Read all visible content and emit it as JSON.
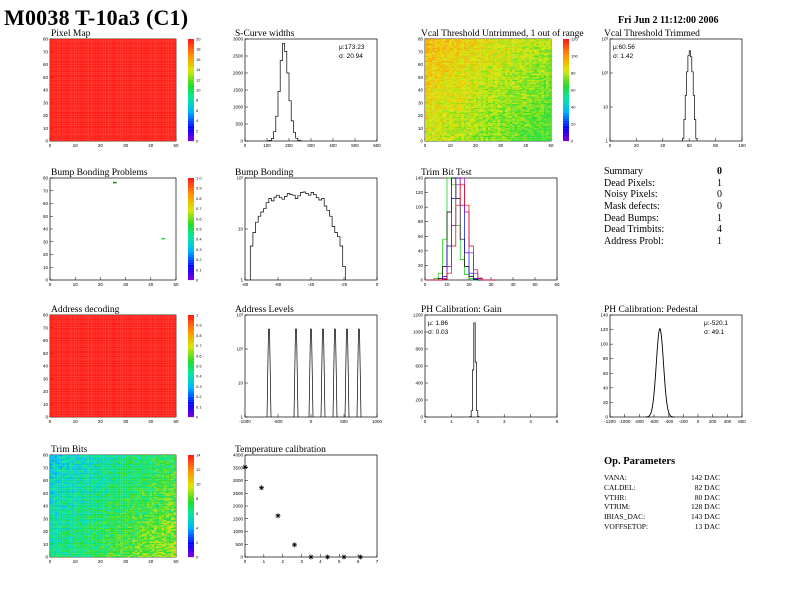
{
  "header": {
    "title": "M0038 T-10a3 (C1)",
    "date": "Fri Jun  2 11:12:00 2006"
  },
  "panels": {
    "pixel_map": {
      "title": "Pixel Map"
    },
    "scurve": {
      "title": "S-Curve widths",
      "stats": [
        "μ:173.23",
        "σ: 20.94"
      ]
    },
    "vcal_untrimmed": {
      "title": "Vcal Threshold Untrimmed, 1 out of range"
    },
    "vcal_trimmed": {
      "title": "Vcal Threshold Trimmed",
      "stats": [
        "μ:60.56",
        "σ: 1.42"
      ]
    },
    "bump_problems": {
      "title": "Bump Bonding Problems"
    },
    "bump_bonding": {
      "title": "Bump Bonding"
    },
    "trim_bit_test": {
      "title": "Trim Bit Test"
    },
    "address_decoding": {
      "title": "Address decoding"
    },
    "address_levels": {
      "title": "Address Levels"
    },
    "ph_gain": {
      "title": "PH Calibration: Gain",
      "stats": [
        "μ: 1.86",
        "σ: 0.03"
      ]
    },
    "ph_pedestal": {
      "title": "PH Calibration: Pedestal",
      "stats": [
        "μ:-520.1",
        "σ: 49.1"
      ]
    },
    "trim_bits": {
      "title": "Trim Bits"
    },
    "temperature": {
      "title": "Temperature calibration"
    }
  },
  "summary": {
    "title": "Summary",
    "title_value": "0",
    "rows": [
      {
        "label": "Dead Pixels:",
        "value": "1"
      },
      {
        "label": "Noisy Pixels:",
        "value": "0"
      },
      {
        "label": "Mask defects:",
        "value": "0"
      },
      {
        "label": "Dead Bumps:",
        "value": "1"
      },
      {
        "label": "Dead Trimbits:",
        "value": "4"
      },
      {
        "label": "Address Probl:",
        "value": "1"
      }
    ]
  },
  "op_parameters": {
    "title": "Op. Parameters",
    "rows": [
      {
        "label": "VANA:",
        "value": "142 DAC"
      },
      {
        "label": "CALDEL:",
        "value": "82 DAC"
      },
      {
        "label": "VTHR:",
        "value": "80 DAC"
      },
      {
        "label": "VTRIM:",
        "value": "128 DAC"
      },
      {
        "label": "IBIAS_DAC:",
        "value": "143 DAC"
      },
      {
        "label": "VOFFSETOP:",
        "value": "13 DAC"
      }
    ]
  },
  "colors": {
    "map_red": "#ff2a10",
    "hist_line": "#000000",
    "trim_green": "#00cc00",
    "trim_blue": "#0000dd",
    "trim_purple": "#9900aa",
    "trim_red": "#dd0000"
  },
  "chart_data": [
    {
      "type": "heatmap",
      "id": "pixel_map",
      "x_ticks": [
        "0",
        "10",
        "20",
        "30",
        "40",
        "50"
      ],
      "y_ticks": [
        "0",
        "10",
        "20",
        "30",
        "40",
        "50",
        "60",
        "70",
        "80"
      ],
      "z_ticks": [
        "0",
        "2",
        "4",
        "6",
        "8",
        "10",
        "12",
        "14",
        "16",
        "18",
        "20"
      ],
      "xlim": [
        0,
        52
      ],
      "ylim": [
        0,
        80
      ],
      "zlim": [
        0,
        20
      ],
      "fill_value": 20,
      "palette": "rainbow"
    },
    {
      "type": "bar",
      "id": "scurve",
      "x_ticks": [
        "0",
        "100",
        "200",
        "300",
        "400",
        "500",
        "600"
      ],
      "y_ticks": [
        "0",
        "500",
        "1000",
        "1500",
        "2000",
        "2500",
        "3000"
      ],
      "xlim": [
        0,
        600
      ],
      "ylim": [
        0,
        3300
      ],
      "bin_width": 10,
      "x": [
        100,
        110,
        120,
        130,
        140,
        150,
        160,
        170,
        180,
        190,
        200,
        210,
        220,
        230,
        240,
        250
      ],
      "values": [
        5,
        20,
        80,
        300,
        800,
        1600,
        2600,
        3150,
        2900,
        2200,
        1300,
        650,
        280,
        90,
        25,
        5
      ]
    },
    {
      "type": "heatmap",
      "id": "vcal_untrimmed",
      "x_ticks": [
        "0",
        "10",
        "20",
        "30",
        "40",
        "50"
      ],
      "y_ticks": [
        "0",
        "10",
        "20",
        "30",
        "40",
        "50",
        "60",
        "70",
        "80"
      ],
      "z_ticks": [
        "0",
        "20",
        "40",
        "60",
        "80",
        "100",
        "120"
      ],
      "xlim": [
        0,
        52
      ],
      "ylim": [
        0,
        80
      ],
      "zlim": [
        0,
        130
      ],
      "palette": "rainbow"
    },
    {
      "type": "bar",
      "id": "vcal_trimmed",
      "yscale": "log",
      "x_ticks": [
        "0",
        "20",
        "40",
        "60",
        "80",
        "100"
      ],
      "y_ticks": [
        "1",
        "10",
        "10²",
        "10³"
      ],
      "xlim": [
        0,
        100
      ],
      "ylim": [
        0.8,
        5000
      ],
      "bin_width": 1,
      "x": [
        55,
        56,
        57,
        58,
        59,
        60,
        61,
        62,
        63,
        64,
        65
      ],
      "values": [
        1,
        5,
        40,
        300,
        1200,
        1800,
        1100,
        300,
        40,
        5,
        1
      ]
    },
    {
      "type": "heatmap",
      "id": "bump_problems",
      "x_ticks": [
        "0",
        "10",
        "20",
        "30",
        "40",
        "50"
      ],
      "y_ticks": [
        "0",
        "10",
        "20",
        "30",
        "40",
        "50",
        "60",
        "70",
        "80"
      ],
      "z_ticks": [
        "0",
        "0.1",
        "0.2",
        "0.3",
        "0.4",
        "0.5",
        "0.6",
        "0.7",
        "0.8",
        "0.9",
        "1.0"
      ],
      "xlim": [
        0,
        52
      ],
      "ylim": [
        0,
        80
      ],
      "zlim": [
        0,
        1
      ],
      "fill_value": 0,
      "marks": [
        {
          "x": 26,
          "y": 76,
          "z": 0.0,
          "color": "#2a7a2a"
        },
        {
          "x": 46,
          "y": 32,
          "z": 0.3,
          "color": "#33cc33"
        }
      ]
    },
    {
      "type": "bar",
      "id": "bump_bonding",
      "yscale": "log",
      "x_ticks": [
        "-80",
        "-60",
        "-40",
        "-20",
        "0"
      ],
      "y_ticks": [
        "1",
        "10",
        "10²"
      ],
      "xlim": [
        -90,
        10
      ],
      "ylim": [
        0.8,
        800
      ],
      "bin_width": 2,
      "x": [
        -86,
        -84,
        -82,
        -80,
        -78,
        -76,
        -74,
        -72,
        -70,
        -68,
        -66,
        -64,
        -62,
        -60,
        -58,
        -56,
        -54,
        -52,
        -50,
        -48,
        -46,
        -44,
        -42,
        -40,
        -38,
        -36,
        -34,
        -32,
        -30,
        -28,
        -26,
        -24,
        -22,
        -20,
        -18,
        -16
      ],
      "values": [
        8,
        20,
        40,
        60,
        80,
        100,
        150,
        200,
        170,
        220,
        250,
        210,
        190,
        230,
        280,
        260,
        250,
        200,
        240,
        300,
        310,
        280,
        250,
        300,
        260,
        210,
        180,
        200,
        120,
        90,
        60,
        30,
        20,
        15,
        8,
        2
      ]
    },
    {
      "type": "line",
      "id": "trim_bit_test",
      "step": true,
      "x_ticks": [
        "0",
        "10",
        "20",
        "30",
        "40",
        "50",
        "60"
      ],
      "y_ticks": [
        "0",
        "20",
        "40",
        "60",
        "80",
        "100",
        "120",
        "140"
      ],
      "xlim": [
        0,
        60
      ],
      "ylim": [
        0,
        150
      ],
      "x": [
        0,
        2,
        4,
        6,
        8,
        10,
        12,
        14,
        16,
        18,
        20,
        22,
        24,
        26,
        28,
        30
      ],
      "series": [
        {
          "color": "#00cc00",
          "values": [
            0,
            0,
            2,
            10,
            60,
            150,
            140,
            80,
            30,
            8,
            2,
            0,
            0,
            0,
            0,
            0
          ]
        },
        {
          "color": "#000000",
          "values": [
            0,
            0,
            0,
            2,
            20,
            100,
            150,
            120,
            60,
            20,
            5,
            1,
            0,
            0,
            0,
            0
          ]
        },
        {
          "color": "#0000dd",
          "values": [
            0,
            0,
            0,
            0,
            5,
            50,
            120,
            150,
            110,
            40,
            10,
            2,
            0,
            0,
            0,
            0
          ]
        },
        {
          "color": "#9900aa",
          "values": [
            0,
            0,
            0,
            0,
            2,
            20,
            80,
            140,
            150,
            100,
            40,
            10,
            2,
            0,
            0,
            0
          ]
        },
        {
          "color": "#dd0000",
          "values": [
            0,
            0,
            0,
            0,
            1,
            10,
            50,
            110,
            140,
            110,
            50,
            15,
            3,
            0,
            0,
            0
          ]
        }
      ]
    },
    {
      "type": "heatmap",
      "id": "address_decoding",
      "x_ticks": [
        "0",
        "10",
        "20",
        "30",
        "40",
        "50"
      ],
      "y_ticks": [
        "0",
        "10",
        "20",
        "30",
        "40",
        "50",
        "60",
        "70",
        "80"
      ],
      "z_ticks": [
        "0",
        "0.1",
        "0.2",
        "0.3",
        "0.4",
        "0.5",
        "0.6",
        "0.7",
        "0.8",
        "0.9",
        "1"
      ],
      "xlim": [
        0,
        52
      ],
      "ylim": [
        0,
        80
      ],
      "zlim": [
        0,
        1
      ],
      "fill_value": 1,
      "palette": "rainbow"
    },
    {
      "type": "bar",
      "id": "address_levels",
      "yscale": "log",
      "x_ticks": [
        "-1000",
        "-500",
        "0",
        "500",
        "1000"
      ],
      "y_ticks": [
        "1",
        "10",
        "10²",
        "10³"
      ],
      "xlim": [
        -1100,
        1100
      ],
      "ylim": [
        0.8,
        5000
      ],
      "peaks": [
        -700,
        -250,
        0,
        200,
        400,
        600,
        800
      ]
    },
    {
      "type": "bar",
      "id": "ph_gain",
      "x_ticks": [
        "0",
        "1",
        "2",
        "3",
        "4",
        "5"
      ],
      "y_ticks": [
        "0",
        "200",
        "400",
        "600",
        "800",
        "1000",
        "1200"
      ],
      "xlim": [
        0,
        5
      ],
      "ylim": [
        0,
        1300
      ],
      "bin_width": 0.05,
      "x": [
        1.7,
        1.75,
        1.8,
        1.85,
        1.9,
        1.95,
        2.0
      ],
      "values": [
        5,
        80,
        600,
        1200,
        700,
        80,
        5
      ]
    },
    {
      "type": "bar",
      "id": "ph_pedestal",
      "x_ticks": [
        "-1200",
        "-1000",
        "-800",
        "-600",
        "-400",
        "-200",
        "0",
        "200",
        "400",
        "600"
      ],
      "y_ticks": [
        "0",
        "20",
        "40",
        "60",
        "80",
        "100",
        "120",
        "140"
      ],
      "xlim": [
        -1200,
        600
      ],
      "ylim": [
        0,
        150
      ],
      "gaussian": {
        "mean": -520.1,
        "sigma": 49.1,
        "peak": 130
      }
    },
    {
      "type": "heatmap",
      "id": "trim_bits",
      "x_ticks": [
        "0",
        "10",
        "20",
        "30",
        "40",
        "50"
      ],
      "y_ticks": [
        "0",
        "10",
        "20",
        "30",
        "40",
        "50",
        "60",
        "70",
        "80"
      ],
      "z_ticks": [
        "0",
        "2",
        "4",
        "6",
        "8",
        "10",
        "12",
        "14"
      ],
      "xlim": [
        0,
        52
      ],
      "ylim": [
        0,
        80
      ],
      "zlim": [
        0,
        15
      ],
      "palette": "rainbow"
    },
    {
      "type": "scatter",
      "id": "temperature",
      "x_ticks": [
        "0",
        "1",
        "2",
        "3",
        "4",
        "5",
        "6",
        "7"
      ],
      "y_ticks": [
        "0",
        "500",
        "1000",
        "1500",
        "2000",
        "2500",
        "3000",
        "3500",
        "4000"
      ],
      "xlim": [
        0,
        8
      ],
      "ylim": [
        0,
        4200
      ],
      "x": [
        0,
        1,
        2,
        3,
        4,
        5,
        6,
        7
      ],
      "values": [
        3700,
        2850,
        1700,
        500,
        0,
        0,
        0,
        0
      ]
    }
  ]
}
